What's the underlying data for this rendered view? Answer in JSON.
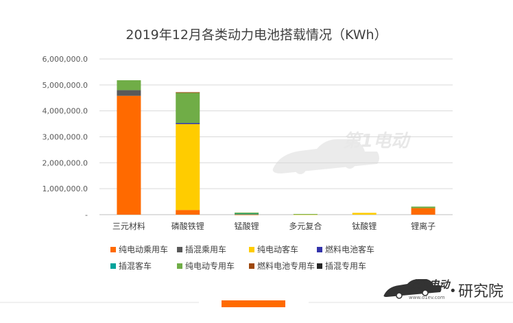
{
  "chart_data": {
    "type": "bar",
    "stacked": true,
    "title": "2019年12月各类动力电池搭载情况（KWh）",
    "categories": [
      "三元材料",
      "磷酸铁锂",
      "锰酸锂",
      "多元复合",
      "钛酸锂",
      "锂离子"
    ],
    "ylim": [
      0,
      6000000
    ],
    "yticks": [
      "-",
      "1,000,000.0",
      "2,000,000.0",
      "3,000,000.0",
      "4,000,000.0",
      "5,000,000.0",
      "6,000,000.0"
    ],
    "grid": true,
    "legend_position": "bottom",
    "series": [
      {
        "name": "纯电动乘用车",
        "color": "#FF6A00",
        "values": [
          4580000,
          180000,
          10000,
          0,
          0,
          250000
        ]
      },
      {
        "name": "插混乘用车",
        "color": "#595959",
        "values": [
          220000,
          0,
          0,
          0,
          0,
          0
        ]
      },
      {
        "name": "纯电动客车",
        "color": "#FFCC00",
        "values": [
          0,
          3310000,
          0,
          15000,
          70000,
          0
        ]
      },
      {
        "name": "燃料电池客车",
        "color": "#3333AA",
        "values": [
          0,
          40000,
          0,
          0,
          0,
          0
        ]
      },
      {
        "name": "插混客车",
        "color": "#00A39B",
        "values": [
          0,
          0,
          30000,
          0,
          0,
          0
        ]
      },
      {
        "name": "纯电动专用车",
        "color": "#70AD47",
        "values": [
          380000,
          1170000,
          40000,
          10000,
          0,
          60000
        ]
      },
      {
        "name": "燃料电池专用车",
        "color": "#9E480E",
        "values": [
          0,
          20000,
          0,
          0,
          0,
          0
        ]
      },
      {
        "name": "插混专用车",
        "color": "#262626",
        "values": [
          0,
          0,
          0,
          0,
          0,
          0
        ]
      }
    ]
  },
  "watermark": {
    "text": "第1电动"
  },
  "brand": {
    "logo_text": "第1电动",
    "logo_sub": "www.d1ev.com",
    "dot": "•",
    "label": "研究院"
  },
  "colors": {
    "accent": "#FF6A00",
    "gridline": "#D9D9D9",
    "footer_line": "#E0E0E0"
  }
}
